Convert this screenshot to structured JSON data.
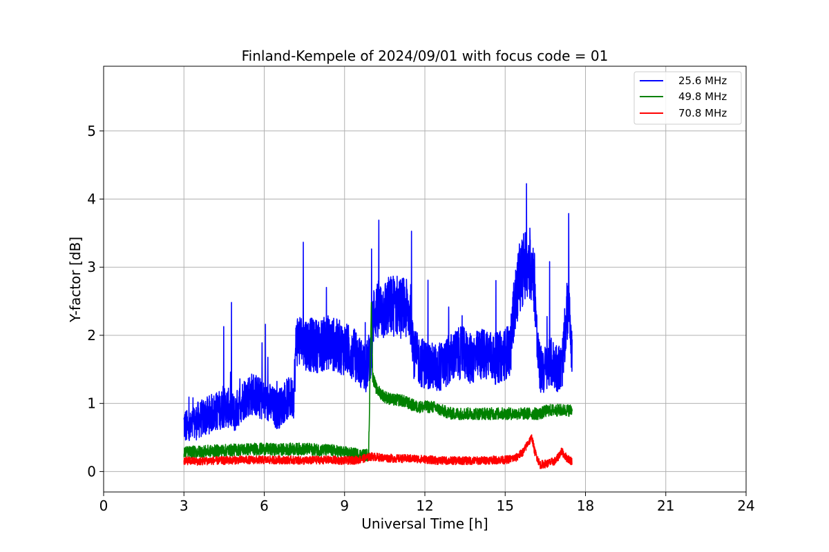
{
  "chart_data": {
    "type": "line",
    "title": "Finland-Kempele of 2024/09/01 with focus code = 01",
    "xlabel": "Universal Time [h]",
    "ylabel": "Y-factor [dB]",
    "xlim": [
      0,
      24
    ],
    "ylim": [
      -0.3,
      5.95
    ],
    "xticks": [
      0,
      3,
      6,
      9,
      12,
      15,
      18,
      21,
      24
    ],
    "yticks": [
      0,
      1,
      2,
      3,
      4,
      5
    ],
    "grid": true,
    "legend_position": "top-right",
    "series": [
      {
        "name": "25.6 MHz",
        "color": "#0000ff",
        "x": [
          3.0,
          3.2,
          3.5,
          3.8,
          4.0,
          4.3,
          4.6,
          4.9,
          5.1,
          5.3,
          5.6,
          5.9,
          6.2,
          6.5,
          6.8,
          7.1,
          7.2,
          7.5,
          7.8,
          8.1,
          8.4,
          8.7,
          9.0,
          9.3,
          9.6,
          9.8,
          10.0,
          10.1,
          10.3,
          10.6,
          10.9,
          11.2,
          11.5,
          11.6,
          11.9,
          12.2,
          12.5,
          12.8,
          13.1,
          13.4,
          13.7,
          14.0,
          14.3,
          14.6,
          14.9,
          15.2,
          15.3,
          15.5,
          15.7,
          15.9,
          16.0,
          16.1,
          16.2,
          16.3,
          16.5,
          16.7,
          16.9,
          17.1,
          17.2,
          17.3,
          17.4,
          17.5
        ],
        "y": [
          0.7,
          0.6,
          0.75,
          0.8,
          0.85,
          0.9,
          0.95,
          0.85,
          1.0,
          1.1,
          1.15,
          1.05,
          1.0,
          0.9,
          1.05,
          1.1,
          1.95,
          1.9,
          1.85,
          1.85,
          1.9,
          1.85,
          1.8,
          1.75,
          1.6,
          1.5,
          1.8,
          2.4,
          2.35,
          2.4,
          2.45,
          2.4,
          2.3,
          1.7,
          1.6,
          1.55,
          1.5,
          1.6,
          1.7,
          1.75,
          1.65,
          1.7,
          1.75,
          1.65,
          1.7,
          1.8,
          2.3,
          2.8,
          3.0,
          3.1,
          2.9,
          2.8,
          1.8,
          1.5,
          1.5,
          1.6,
          1.55,
          1.5,
          1.8,
          2.3,
          2.6,
          1.6
        ]
      },
      {
        "name": "49.8 MHz",
        "color": "#008000",
        "x": [
          3.0,
          3.5,
          4.0,
          4.5,
          5.0,
          5.5,
          6.0,
          6.5,
          7.0,
          7.5,
          8.0,
          8.5,
          9.0,
          9.5,
          9.9,
          10.0,
          10.05,
          10.2,
          10.5,
          10.8,
          11.1,
          11.4,
          11.7,
          12.0,
          12.3,
          12.6,
          13.0,
          13.5,
          14.0,
          14.5,
          15.0,
          15.5,
          16.0,
          16.3,
          16.6,
          17.0,
          17.5
        ],
        "y": [
          0.28,
          0.29,
          0.3,
          0.31,
          0.32,
          0.33,
          0.33,
          0.32,
          0.33,
          0.33,
          0.32,
          0.31,
          0.28,
          0.25,
          0.24,
          2.5,
          1.4,
          1.2,
          1.1,
          1.05,
          1.05,
          1.0,
          0.95,
          0.95,
          0.95,
          0.9,
          0.85,
          0.85,
          0.85,
          0.85,
          0.85,
          0.85,
          0.85,
          0.85,
          0.9,
          0.9,
          0.9
        ]
      },
      {
        "name": "70.8 MHz",
        "color": "#ff0000",
        "x": [
          3.0,
          3.5,
          4.0,
          4.5,
          5.0,
          5.5,
          6.0,
          6.5,
          7.0,
          7.5,
          8.0,
          8.5,
          9.0,
          9.5,
          10.0,
          10.5,
          11.0,
          11.5,
          12.0,
          12.5,
          13.0,
          13.5,
          14.0,
          14.5,
          15.0,
          15.4,
          15.7,
          15.85,
          16.0,
          16.1,
          16.3,
          16.6,
          16.9,
          17.1,
          17.3,
          17.5
        ],
        "y": [
          0.16,
          0.15,
          0.16,
          0.16,
          0.17,
          0.17,
          0.17,
          0.17,
          0.17,
          0.16,
          0.17,
          0.17,
          0.16,
          0.17,
          0.22,
          0.2,
          0.19,
          0.19,
          0.18,
          0.16,
          0.16,
          0.16,
          0.16,
          0.17,
          0.17,
          0.2,
          0.3,
          0.42,
          0.5,
          0.3,
          0.1,
          0.12,
          0.16,
          0.3,
          0.2,
          0.15
        ]
      }
    ]
  }
}
